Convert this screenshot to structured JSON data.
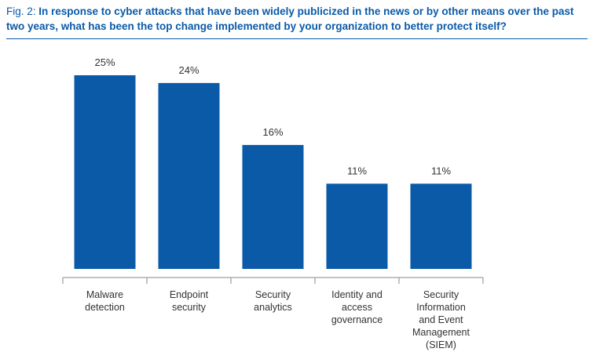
{
  "figure": {
    "prefix": "Fig. 2: ",
    "title": "In response to cyber attacks that have been widely publicized in the news or by other means over the past two years, what has been the top change implemented by your organization to better protect itself?"
  },
  "colors": {
    "bar": "#0a5aa8",
    "title": "#0a5aa8",
    "axis": "#888888",
    "label": "#333333"
  },
  "chart_data": {
    "type": "bar",
    "categories": [
      [
        "Malware",
        "detection"
      ],
      [
        "Endpoint",
        "security"
      ],
      [
        "Security",
        "analytics"
      ],
      [
        "Identity and",
        "access",
        "governance"
      ],
      [
        "Security",
        "Information",
        "and Event",
        "Management",
        "(SIEM)"
      ]
    ],
    "values": [
      25,
      24,
      16,
      11,
      11
    ],
    "value_labels": [
      "25%",
      "24%",
      "16%",
      "11%",
      "11%"
    ],
    "ylim": [
      0,
      25
    ],
    "grid": false,
    "legend": "none"
  }
}
